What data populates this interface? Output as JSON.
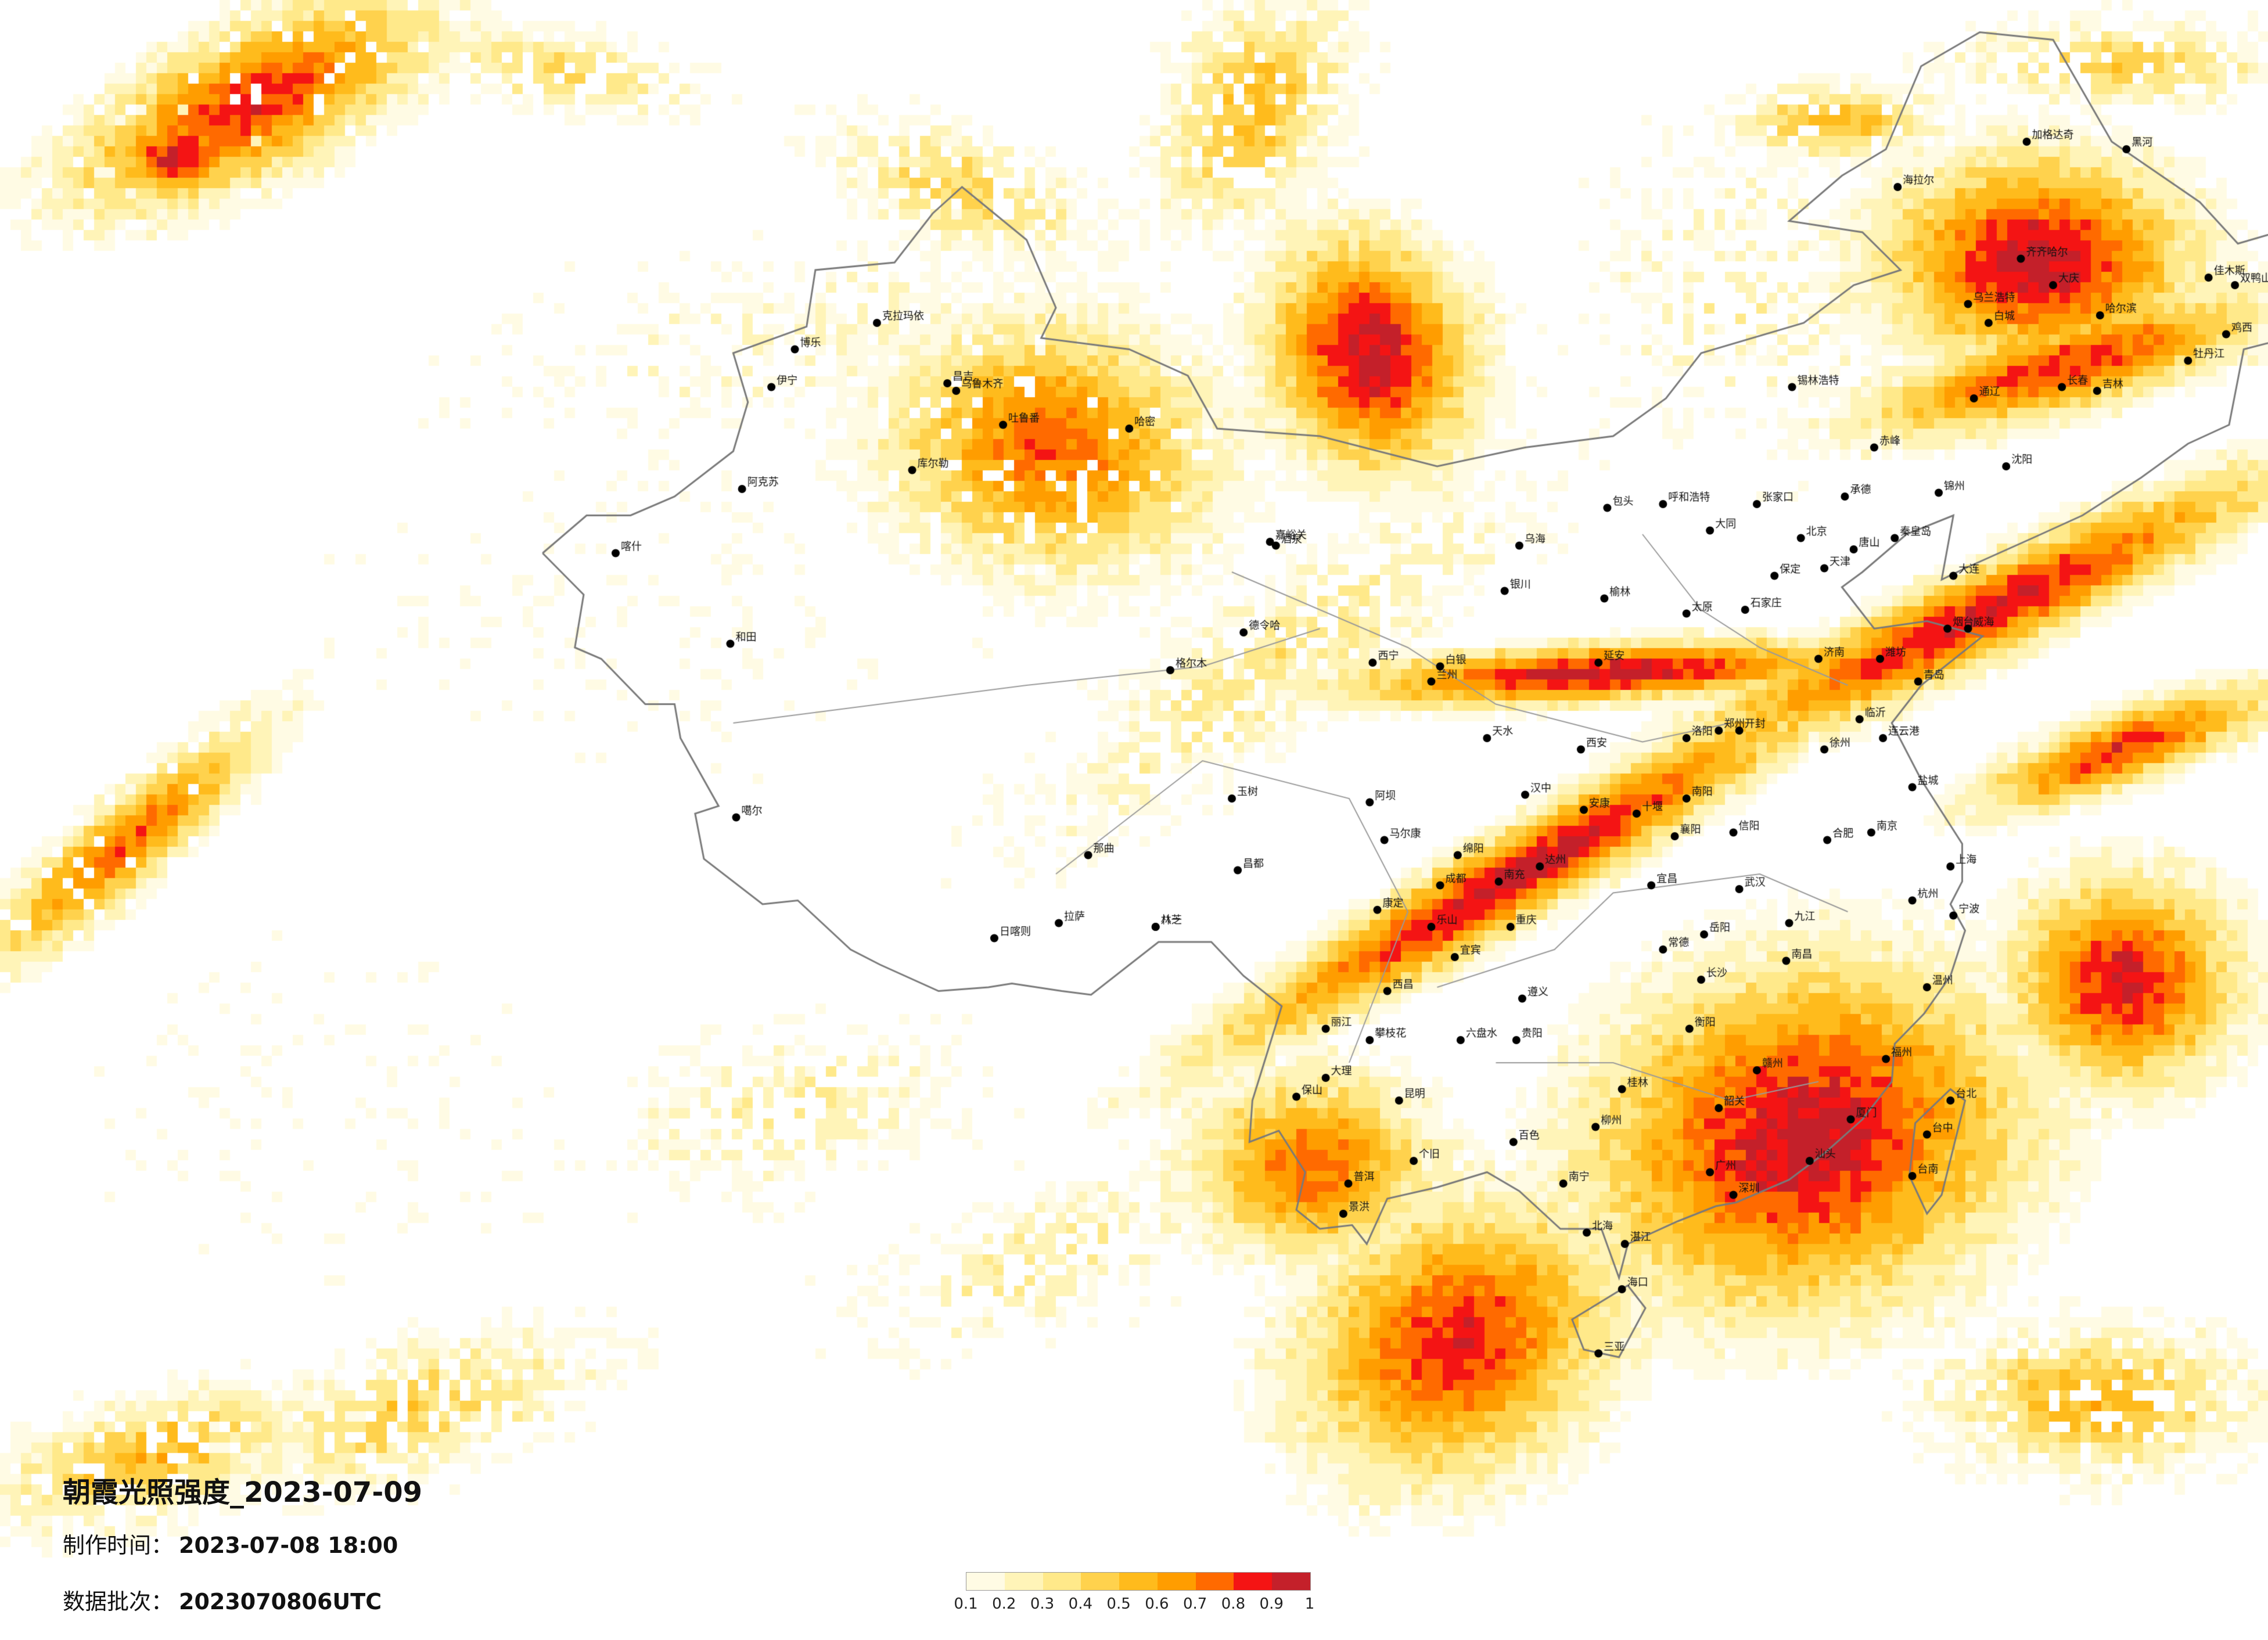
{
  "header": {
    "title": "朝霞光照强度_2023-07-09",
    "made_label": "制作时间：",
    "made_value": "2023-07-08 18:00",
    "batch_label": "数据批次：",
    "batch_value": "2023070806UTC"
  },
  "legend": {
    "labels": [
      "0.1",
      "0.2",
      "0.3",
      "0.4",
      "0.5",
      "0.6",
      "0.7",
      "0.8",
      "0.9",
      "1"
    ],
    "colors": [
      "#fffbe4",
      "#fff4b8",
      "#ffe98a",
      "#ffd24d",
      "#ffbb1c",
      "#ff9d00",
      "#ff6a00",
      "#f41414",
      "#c4202a"
    ]
  },
  "map": {
    "type": "heatmap",
    "variable": "朝霞光照强度",
    "cities": [
      {
        "name": "克拉玛依",
        "lon": 84.9,
        "lat": 45.6
      },
      {
        "name": "伊宁",
        "lon": 81.3,
        "lat": 43.9
      },
      {
        "name": "博乐",
        "lon": 82.1,
        "lat": 44.9
      },
      {
        "name": "昌吉",
        "lon": 87.3,
        "lat": 44.0
      },
      {
        "name": "乌鲁木齐",
        "lon": 87.6,
        "lat": 43.8
      },
      {
        "name": "吐鲁番",
        "lon": 89.2,
        "lat": 42.9
      },
      {
        "name": "哈密",
        "lon": 93.5,
        "lat": 42.8
      },
      {
        "name": "库尔勒",
        "lon": 86.1,
        "lat": 41.7
      },
      {
        "name": "阿克苏",
        "lon": 80.3,
        "lat": 41.2
      },
      {
        "name": "喀什",
        "lon": 75.99,
        "lat": 39.5
      },
      {
        "name": "和田",
        "lon": 79.9,
        "lat": 37.1
      },
      {
        "name": "嘉峪关",
        "lon": 98.3,
        "lat": 39.8
      },
      {
        "name": "酒泉",
        "lon": 98.5,
        "lat": 39.7
      },
      {
        "name": "西宁",
        "lon": 101.8,
        "lat": 36.6
      },
      {
        "name": "玉树",
        "lon": 97.0,
        "lat": 33.0
      },
      {
        "name": "噶尔",
        "lon": 80.1,
        "lat": 32.5
      },
      {
        "name": "那曲",
        "lon": 92.1,
        "lat": 31.5
      },
      {
        "name": "昌都",
        "lon": 97.2,
        "lat": 31.1
      },
      {
        "name": "日喀则",
        "lon": 88.9,
        "lat": 29.3
      },
      {
        "name": "拉萨",
        "lon": 91.1,
        "lat": 29.7
      },
      {
        "name": "八一",
        "lon": 94.4,
        "lat": 29.6
      },
      {
        "name": "林芝",
        "lon": 94.4,
        "lat": 29.6
      },
      {
        "name": "银川",
        "lon": 106.3,
        "lat": 38.5
      },
      {
        "name": "乌海",
        "lon": 106.8,
        "lat": 39.7
      },
      {
        "name": "包头",
        "lon": 109.8,
        "lat": 40.7
      },
      {
        "name": "呼和浩特",
        "lon": 111.7,
        "lat": 40.8
      },
      {
        "name": "兰州",
        "lon": 103.8,
        "lat": 36.1
      },
      {
        "name": "白银",
        "lon": 104.1,
        "lat": 36.5
      },
      {
        "name": "天水",
        "lon": 105.7,
        "lat": 34.6
      },
      {
        "name": "西安",
        "lon": 108.9,
        "lat": 34.3
      },
      {
        "name": "延安",
        "lon": 109.5,
        "lat": 36.6
      },
      {
        "name": "榆林",
        "lon": 109.7,
        "lat": 38.3
      },
      {
        "name": "太原",
        "lon": 112.5,
        "lat": 37.9
      },
      {
        "name": "大同",
        "lon": 113.3,
        "lat": 40.1
      },
      {
        "name": "张家口",
        "lon": 114.9,
        "lat": 40.8
      },
      {
        "name": "北京",
        "lon": 116.4,
        "lat": 39.9
      },
      {
        "name": "天津",
        "lon": 117.2,
        "lat": 39.1
      },
      {
        "name": "石家庄",
        "lon": 114.5,
        "lat": 38.0
      },
      {
        "name": "保定",
        "lon": 115.5,
        "lat": 38.9
      },
      {
        "name": "唐山",
        "lon": 118.2,
        "lat": 39.6
      },
      {
        "name": "秦皇岛",
        "lon": 119.6,
        "lat": 39.9
      },
      {
        "name": "承德",
        "lon": 117.9,
        "lat": 41.0
      },
      {
        "name": "赤峰",
        "lon": 118.9,
        "lat": 42.3
      },
      {
        "name": "锦州",
        "lon": 121.1,
        "lat": 41.1
      },
      {
        "name": "沈阳",
        "lon": 123.4,
        "lat": 41.8
      },
      {
        "name": "大连",
        "lon": 121.6,
        "lat": 38.9
      },
      {
        "name": "长春",
        "lon": 125.3,
        "lat": 43.9
      },
      {
        "name": "吉林",
        "lon": 126.5,
        "lat": 43.8
      },
      {
        "name": "通辽",
        "lon": 122.3,
        "lat": 43.6
      },
      {
        "name": "哈尔滨",
        "lon": 126.6,
        "lat": 45.8
      },
      {
        "name": "齐齐哈尔",
        "lon": 123.9,
        "lat": 47.3
      },
      {
        "name": "大庆",
        "lon": 125.0,
        "lat": 46.6
      },
      {
        "name": "牡丹江",
        "lon": 129.6,
        "lat": 44.6
      },
      {
        "name": "佳木斯",
        "lon": 130.3,
        "lat": 46.8
      },
      {
        "name": "鸡西",
        "lon": 130.9,
        "lat": 45.3
      },
      {
        "name": "双鸭山",
        "lon": 131.2,
        "lat": 46.6
      },
      {
        "name": "黑河",
        "lon": 127.5,
        "lat": 50.2
      },
      {
        "name": "加格达奇",
        "lon": 124.1,
        "lat": 50.4
      },
      {
        "name": "海拉尔",
        "lon": 119.7,
        "lat": 49.2
      },
      {
        "name": "乌兰浩特",
        "lon": 122.1,
        "lat": 46.1
      },
      {
        "name": "白城",
        "lon": 122.8,
        "lat": 45.6
      },
      {
        "name": "锡林浩特",
        "lon": 116.1,
        "lat": 43.9
      },
      {
        "name": "济南",
        "lon": 117.0,
        "lat": 36.7
      },
      {
        "name": "青岛",
        "lon": 120.4,
        "lat": 36.1
      },
      {
        "name": "烟台",
        "lon": 121.4,
        "lat": 37.5
      },
      {
        "name": "威海",
        "lon": 122.1,
        "lat": 37.5
      },
      {
        "name": "潍坊",
        "lon": 119.1,
        "lat": 36.7
      },
      {
        "name": "临沂",
        "lon": 118.4,
        "lat": 35.1
      },
      {
        "name": "郑州",
        "lon": 113.6,
        "lat": 34.8
      },
      {
        "name": "洛阳",
        "lon": 112.5,
        "lat": 34.6
      },
      {
        "name": "开封",
        "lon": 114.3,
        "lat": 34.8
      },
      {
        "name": "南阳",
        "lon": 112.5,
        "lat": 33.0
      },
      {
        "name": "信阳",
        "lon": 114.1,
        "lat": 32.1
      },
      {
        "name": "徐州",
        "lon": 117.2,
        "lat": 34.3
      },
      {
        "name": "连云港",
        "lon": 119.2,
        "lat": 34.6
      },
      {
        "name": "盐城",
        "lon": 120.2,
        "lat": 33.3
      },
      {
        "name": "南京",
        "lon": 118.8,
        "lat": 32.1
      },
      {
        "name": "合肥",
        "lon": 117.3,
        "lat": 31.9
      },
      {
        "name": "上海",
        "lon": 121.5,
        "lat": 31.2
      },
      {
        "name": "杭州",
        "lon": 120.2,
        "lat": 30.3
      },
      {
        "name": "宁波",
        "lon": 121.6,
        "lat": 29.9
      },
      {
        "name": "温州",
        "lon": 120.7,
        "lat": 28.0
      },
      {
        "name": "武汉",
        "lon": 114.3,
        "lat": 30.6
      },
      {
        "name": "宜昌",
        "lon": 111.3,
        "lat": 30.7
      },
      {
        "name": "襄阳",
        "lon": 112.1,
        "lat": 32.0
      },
      {
        "name": "十堰",
        "lon": 110.8,
        "lat": 32.6
      },
      {
        "name": "长沙",
        "lon": 113.0,
        "lat": 28.2
      },
      {
        "name": "岳阳",
        "lon": 113.1,
        "lat": 29.4
      },
      {
        "name": "常德",
        "lon": 111.7,
        "lat": 29.0
      },
      {
        "name": "衡阳",
        "lon": 112.6,
        "lat": 26.9
      },
      {
        "name": "南昌",
        "lon": 115.9,
        "lat": 28.7
      },
      {
        "name": "九江",
        "lon": 116.0,
        "lat": 29.7
      },
      {
        "name": "赣州",
        "lon": 114.9,
        "lat": 25.8
      },
      {
        "name": "福州",
        "lon": 119.3,
        "lat": 26.1
      },
      {
        "name": "厦门",
        "lon": 118.1,
        "lat": 24.5
      },
      {
        "name": "台北",
        "lon": 121.5,
        "lat": 25.0
      },
      {
        "name": "台中",
        "lon": 120.7,
        "lat": 24.1
      },
      {
        "name": "台南",
        "lon": 120.2,
        "lat": 23.0
      },
      {
        "name": "广州",
        "lon": 113.3,
        "lat": 23.1
      },
      {
        "name": "深圳",
        "lon": 114.1,
        "lat": 22.5
      },
      {
        "name": "汕头",
        "lon": 116.7,
        "lat": 23.4
      },
      {
        "name": "韶关",
        "lon": 113.6,
        "lat": 24.8
      },
      {
        "name": "湛江",
        "lon": 110.4,
        "lat": 21.2
      },
      {
        "name": "海口",
        "lon": 110.3,
        "lat": 20.0
      },
      {
        "name": "三亚",
        "lon": 109.5,
        "lat": 18.3
      },
      {
        "name": "南宁",
        "lon": 108.3,
        "lat": 22.8
      },
      {
        "name": "桂林",
        "lon": 110.3,
        "lat": 25.3
      },
      {
        "name": "柳州",
        "lon": 109.4,
        "lat": 24.3
      },
      {
        "name": "百色",
        "lon": 106.6,
        "lat": 23.9
      },
      {
        "name": "北海",
        "lon": 109.1,
        "lat": 21.5
      },
      {
        "name": "贵阳",
        "lon": 106.7,
        "lat": 26.6
      },
      {
        "name": "遵义",
        "lon": 106.9,
        "lat": 27.7
      },
      {
        "name": "六盘水",
        "lon": 104.8,
        "lat": 26.6
      },
      {
        "name": "昆明",
        "lon": 102.7,
        "lat": 25.0
      },
      {
        "name": "大理",
        "lon": 100.2,
        "lat": 25.6
      },
      {
        "name": "丽江",
        "lon": 100.2,
        "lat": 26.9
      },
      {
        "name": "保山",
        "lon": 99.2,
        "lat": 25.1
      },
      {
        "name": "个旧",
        "lon": 103.2,
        "lat": 23.4
      },
      {
        "name": "普洱",
        "lon": 100.97,
        "lat": 22.8
      },
      {
        "name": "景洪",
        "lon": 100.8,
        "lat": 22.0
      },
      {
        "name": "成都",
        "lon": 104.1,
        "lat": 30.7
      },
      {
        "name": "绵阳",
        "lon": 104.7,
        "lat": 31.5
      },
      {
        "name": "南充",
        "lon": 106.1,
        "lat": 30.8
      },
      {
        "name": "乐山",
        "lon": 103.8,
        "lat": 29.6
      },
      {
        "name": "宜宾",
        "lon": 104.6,
        "lat": 28.8
      },
      {
        "name": "西昌",
        "lon": 102.3,
        "lat": 27.9
      },
      {
        "name": "攀枝花",
        "lon": 101.7,
        "lat": 26.6
      },
      {
        "name": "重庆",
        "lon": 106.5,
        "lat": 29.6
      },
      {
        "name": "达州",
        "lon": 107.5,
        "lat": 31.2
      },
      {
        "name": "汉中",
        "lon": 107.0,
        "lat": 33.1
      },
      {
        "name": "安康",
        "lon": 109.0,
        "lat": 32.7
      },
      {
        "name": "马尔康",
        "lon": 102.2,
        "lat": 31.9
      },
      {
        "name": "康定",
        "lon": 101.96,
        "lat": 30.05
      },
      {
        "name": "阿坝",
        "lon": 101.7,
        "lat": 32.9
      },
      {
        "name": "格尔木",
        "lon": 94.9,
        "lat": 36.4
      },
      {
        "name": "德令哈",
        "lon": 97.4,
        "lat": 37.4
      }
    ]
  }
}
